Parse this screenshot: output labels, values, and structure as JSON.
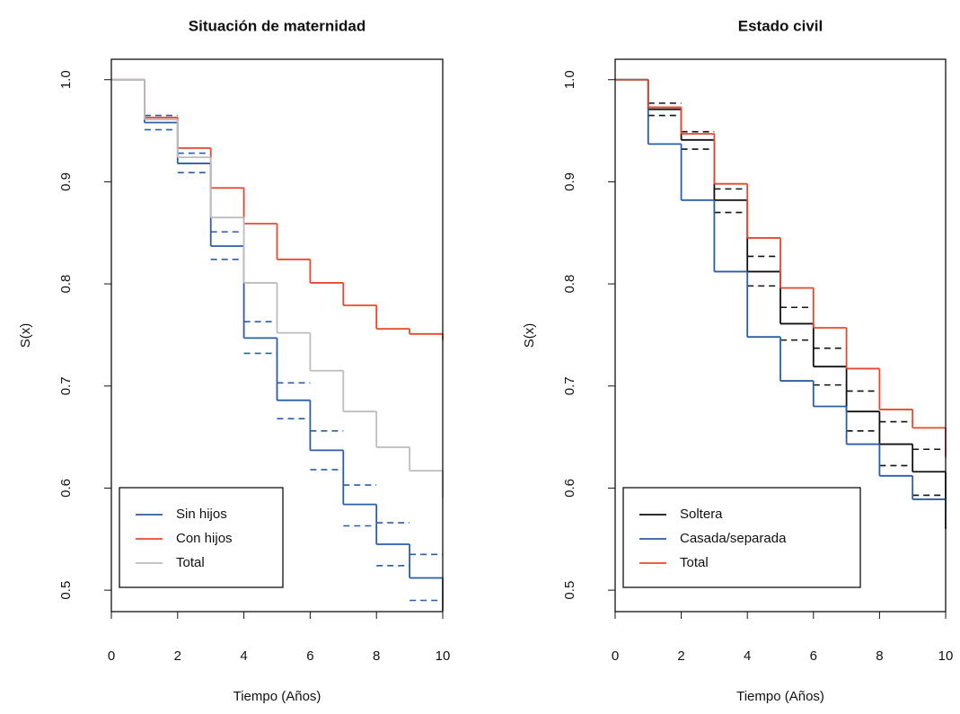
{
  "chart_data": [
    {
      "type": "step",
      "title": "Situación de maternidad",
      "x_label": "Tiempo (Años)",
      "y_label": "S(x)",
      "x": [
        0,
        1,
        2,
        3,
        4,
        5,
        6,
        7,
        8,
        9,
        10
      ],
      "xlim": [
        0,
        10
      ],
      "xticks": [
        0,
        2,
        4,
        6,
        8,
        10
      ],
      "ylim": [
        0.479,
        1.02
      ],
      "yticks": [
        0.5,
        0.6,
        0.7,
        0.8,
        0.9,
        {
          "value": 1,
          "label": "1.0"
        }
      ],
      "legend": "bottomleft",
      "series": [
        {
          "name": "Sin hijos",
          "color": "#2b5ca8",
          "values": [
            1,
            0.958,
            0.918,
            0.837,
            0.747,
            0.686,
            0.637,
            0.584,
            0.545,
            0.512,
            0.48
          ],
          "upper": [
            null,
            0.965,
            0.928,
            0.851,
            0.763,
            0.703,
            0.656,
            0.603,
            0.566,
            0.535,
            null
          ],
          "lower": [
            null,
            0.951,
            0.909,
            0.824,
            0.732,
            0.668,
            0.618,
            0.563,
            0.524,
            0.49,
            null
          ]
        },
        {
          "name": "Con hijos",
          "color": "#e8472e",
          "values": [
            1,
            0.963,
            0.933,
            0.894,
            0.859,
            0.824,
            0.801,
            0.779,
            0.756,
            0.751,
            0.745
          ]
        },
        {
          "name": "Total",
          "color": "#bdbdbd",
          "values": [
            1,
            0.961,
            0.924,
            0.865,
            0.801,
            0.752,
            0.715,
            0.675,
            0.64,
            0.617,
            0.59
          ]
        }
      ]
    },
    {
      "type": "step",
      "title": "Estado civil",
      "x_label": "Tiempo (Años)",
      "y_label": "S(x)",
      "x": [
        0,
        1,
        2,
        3,
        4,
        5,
        6,
        7,
        8,
        9,
        10
      ],
      "xlim": [
        0,
        10
      ],
      "xticks": [
        0,
        2,
        4,
        6,
        8,
        10
      ],
      "ylim": [
        0.479,
        1.02
      ],
      "yticks": [
        0.5,
        0.6,
        0.7,
        0.8,
        0.9,
        {
          "value": 1,
          "label": "1.0"
        }
      ],
      "legend": "bottomleft",
      "series": [
        {
          "name": "Soltera",
          "color": "#111111",
          "values": [
            1,
            0.971,
            0.941,
            0.882,
            0.812,
            0.761,
            0.719,
            0.675,
            0.643,
            0.616,
            0.56
          ],
          "upper": [
            null,
            0.977,
            0.949,
            0.893,
            0.827,
            0.777,
            0.737,
            0.695,
            0.665,
            0.638,
            null
          ],
          "lower": [
            null,
            0.965,
            0.932,
            0.87,
            0.798,
            0.745,
            0.701,
            0.656,
            0.622,
            0.593,
            null
          ]
        },
        {
          "name": "Casada/separada",
          "color": "#2b5ca8",
          "values": [
            1,
            0.937,
            0.882,
            0.812,
            0.748,
            0.705,
            0.68,
            0.643,
            0.612,
            0.589,
            0.57
          ]
        },
        {
          "name": "Total",
          "color": "#e8472e",
          "values": [
            1,
            0.973,
            0.947,
            0.898,
            0.845,
            0.796,
            0.757,
            0.717,
            0.677,
            0.659,
            0.63
          ]
        }
      ]
    }
  ]
}
